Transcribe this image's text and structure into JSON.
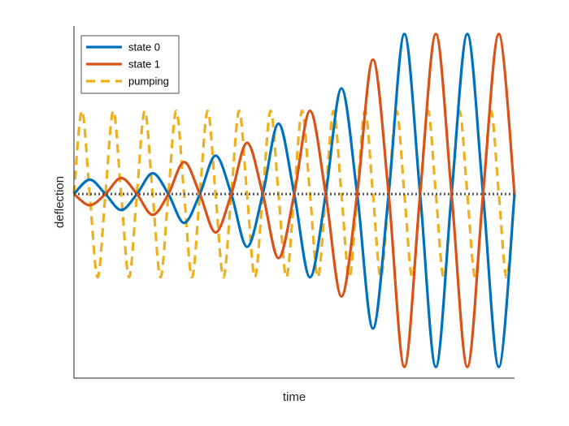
{
  "chart_data": {
    "type": "line",
    "title": "",
    "xlabel": "time",
    "ylabel": "deflection",
    "xlim": [
      0,
      14.0
    ],
    "ylim": [
      -1.15,
      1.05
    ],
    "grid": false,
    "legend_position": "top-left",
    "series": [
      {
        "name": "state 0",
        "color": "#0072BD",
        "style": "solid",
        "x": [
          0.0,
          0.5,
          1.0,
          1.5,
          2.0,
          2.5,
          3.0,
          3.5,
          4.0,
          4.5,
          5.0,
          5.5,
          6.0,
          6.5,
          7.0,
          7.5,
          8.0,
          8.5,
          9.0,
          9.5,
          10.0,
          10.5,
          11.0,
          11.5,
          12.0,
          12.5,
          13.0,
          13.5,
          14.0
        ],
        "y": [
          0.0,
          0.09,
          0.0,
          -0.1,
          0.0,
          0.13,
          0.0,
          -0.18,
          0.0,
          0.24,
          0.0,
          -0.33,
          0.0,
          0.44,
          0.0,
          -0.52,
          0.0,
          0.66,
          0.0,
          -0.84,
          0.0,
          1.0,
          0.0,
          -1.08,
          0.0,
          1.0,
          0.0,
          -1.08,
          0.0
        ]
      },
      {
        "name": "state 1",
        "color": "#D95319",
        "style": "solid",
        "x": [
          0.0,
          0.5,
          1.0,
          1.5,
          2.0,
          2.5,
          3.0,
          3.5,
          4.0,
          4.5,
          5.0,
          5.5,
          6.0,
          6.5,
          7.0,
          7.5,
          8.0,
          8.5,
          9.0,
          9.5,
          10.0,
          10.5,
          11.0,
          11.5,
          12.0,
          12.5,
          13.0,
          13.5,
          14.0
        ],
        "y": [
          0.0,
          -0.07,
          0.0,
          0.1,
          0.0,
          -0.13,
          0.0,
          0.2,
          0.0,
          -0.24,
          0.0,
          0.32,
          0.0,
          -0.4,
          0.0,
          0.52,
          0.0,
          -0.64,
          0.0,
          0.84,
          0.0,
          -1.08,
          0.0,
          1.0,
          0.0,
          -1.08,
          0.0,
          1.0,
          0.0
        ]
      },
      {
        "name": "pumping",
        "color": "#EDB120",
        "style": "dashed",
        "x": [
          0.0,
          0.25,
          0.5,
          0.75,
          1.0,
          1.25,
          1.5,
          1.75,
          2.0,
          2.25,
          2.5,
          2.75,
          3.0,
          3.25,
          3.5,
          3.75,
          4.0,
          4.25,
          4.5,
          4.75,
          5.0,
          5.25,
          5.5,
          5.75,
          6.0,
          6.25,
          6.5,
          6.75,
          7.0,
          7.25,
          7.5,
          7.75,
          8.0,
          8.25,
          8.5,
          8.75,
          9.0,
          9.25,
          9.5,
          9.75,
          10.0,
          10.25,
          10.5,
          10.75,
          11.0,
          11.25,
          11.5,
          11.75,
          12.0,
          12.25,
          12.5,
          12.75,
          13.0,
          13.25,
          13.5,
          13.75,
          14.0
        ],
        "y": [
          0.0,
          0.52,
          0.0,
          -0.52,
          0.0,
          0.52,
          0.0,
          -0.52,
          0.0,
          0.52,
          0.0,
          -0.52,
          0.0,
          0.52,
          0.0,
          -0.52,
          0.0,
          0.52,
          0.0,
          -0.52,
          0.0,
          0.52,
          0.0,
          -0.52,
          0.0,
          0.52,
          0.0,
          -0.52,
          0.0,
          0.52,
          0.0,
          -0.52,
          0.0,
          0.52,
          0.0,
          -0.52,
          0.0,
          0.52,
          0.0,
          -0.52,
          0.0,
          0.52,
          0.0,
          -0.52,
          0.0,
          0.52,
          0.0,
          -0.52,
          0.0,
          0.52,
          0.0,
          -0.52,
          0.0,
          0.52,
          0.0,
          -0.52,
          0.0
        ]
      },
      {
        "name": "",
        "color": "#555555",
        "style": "dotted",
        "x": [
          0.0,
          14.0
        ],
        "y": [
          0.0,
          0.0
        ]
      }
    ]
  }
}
